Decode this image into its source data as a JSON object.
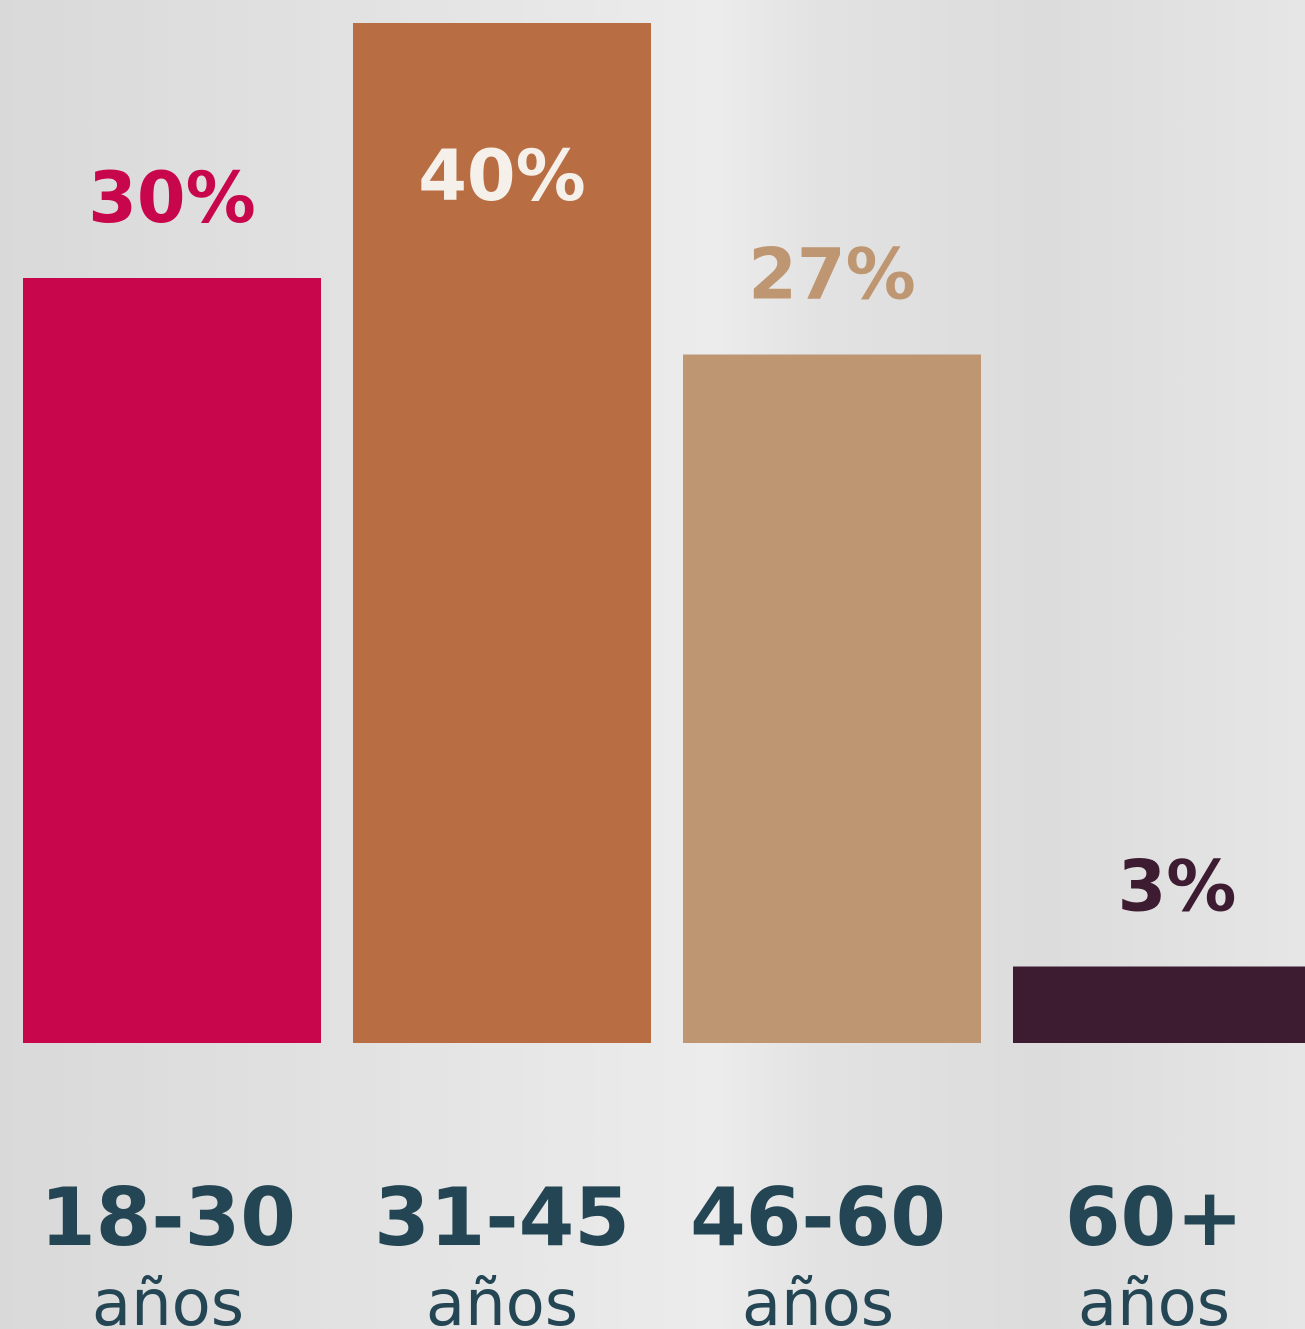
{
  "chart_data": {
    "type": "bar",
    "title": "",
    "xlabel": "",
    "ylabel": "",
    "ylim": [
      0,
      40
    ],
    "grid": false,
    "legend": "none",
    "categories": [
      "18-30",
      "31-45",
      "46-60",
      "60+"
    ],
    "category_unit": "años",
    "values": [
      30,
      40,
      27,
      3
    ],
    "data_labels": [
      "30%",
      "40%",
      "27%",
      "3%"
    ],
    "bar_colors": [
      "#c8064b",
      "#b86e42",
      "#be9672",
      "#3d1b31"
    ],
    "label_colors": [
      "#c8064b",
      "#f5f0ea",
      "#be9672",
      "#3d1b31"
    ]
  }
}
